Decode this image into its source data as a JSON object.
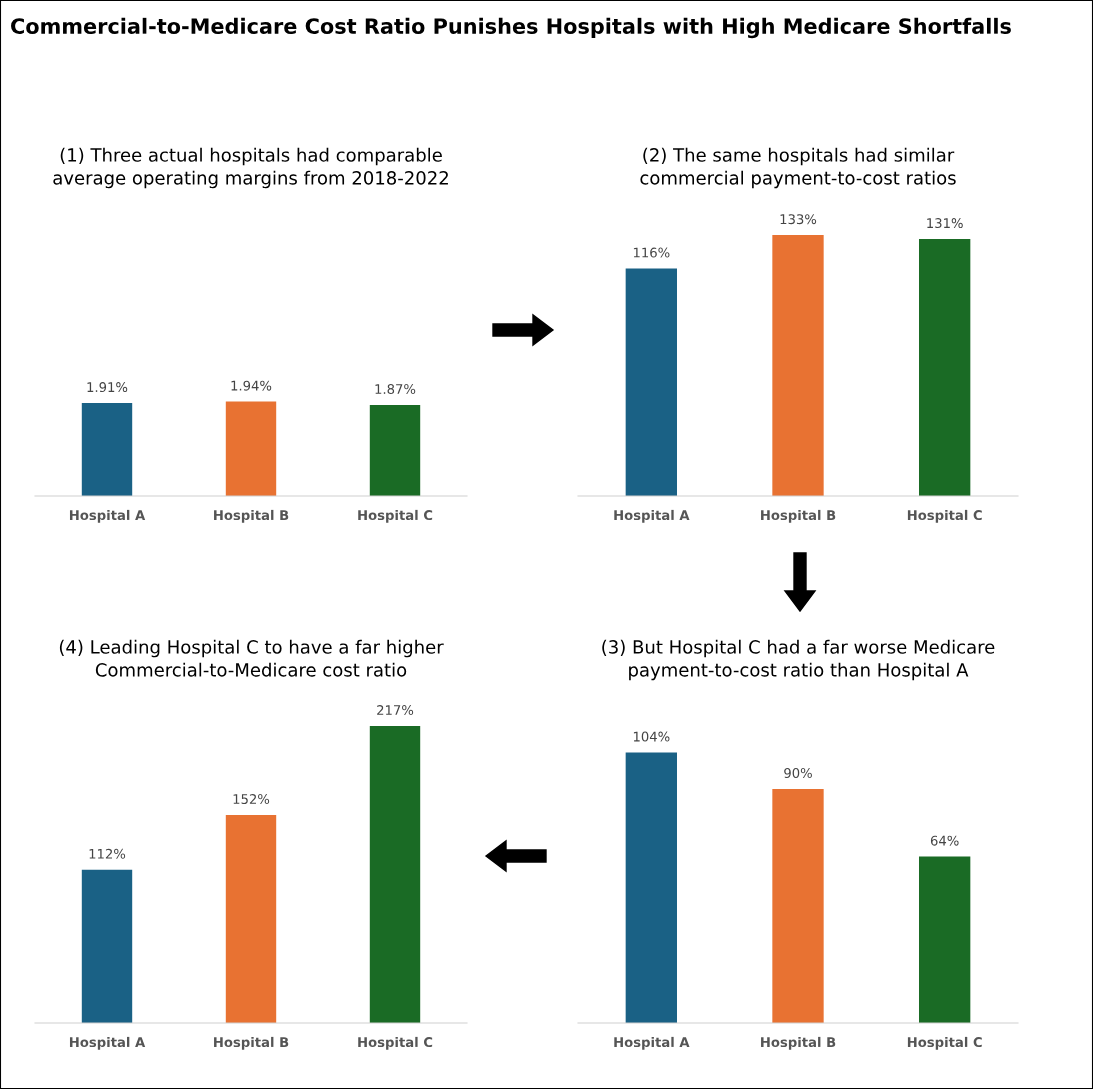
{
  "chart_data": [
    {
      "type": "bar",
      "title": "(1) Three actual hospitals had comparable\naverage operating margins from 2018-2022",
      "categories": [
        "Hospital A",
        "Hospital B",
        "Hospital C"
      ],
      "values": [
        1.91,
        1.94,
        1.87
      ],
      "value_labels": [
        "1.91%",
        "1.94%",
        "1.87%"
      ],
      "colors": [
        "#1a6185",
        "#e87232",
        "#1a6b25"
      ],
      "grid": false,
      "legend": false,
      "annotations": [
        "Commercial-to-Medicare Cost Ratio Punishes Hospitals with High Medicare Shortfalls"
      ]
    },
    {
      "type": "bar",
      "title": "(2) The same hospitals had similar\ncommercial payment-to-cost ratios",
      "categories": [
        "Hospital A",
        "Hospital B",
        "Hospital C"
      ],
      "values": [
        116,
        133,
        131
      ],
      "value_labels": [
        "116%",
        "133%",
        "131%"
      ],
      "colors": [
        "#1a6185",
        "#e87232",
        "#1a6b25"
      ],
      "grid": false,
      "legend": false
    },
    {
      "type": "bar",
      "title": "(4) Leading Hospital C to have a far higher\nCommercial-to-Medicare cost ratio",
      "categories": [
        "Hospital A",
        "Hospital B",
        "Hospital C"
      ],
      "values": [
        112,
        152,
        217
      ],
      "value_labels": [
        "112%",
        "152%",
        "217%"
      ],
      "colors": [
        "#1a6185",
        "#e87232",
        "#1a6b25"
      ],
      "grid": false,
      "legend": false
    },
    {
      "type": "bar",
      "title": "(3) But Hospital C had a far worse Medicare\npayment-to-cost ratio than Hospital A",
      "categories": [
        "Hospital A",
        "Hospital B",
        "Hospital C"
      ],
      "values": [
        104,
        90,
        64
      ],
      "value_labels": [
        "104%",
        "90%",
        "64%"
      ],
      "colors": [
        "#1a6185",
        "#e87232",
        "#1a6b25"
      ],
      "grid": false,
      "legend": false
    }
  ]
}
